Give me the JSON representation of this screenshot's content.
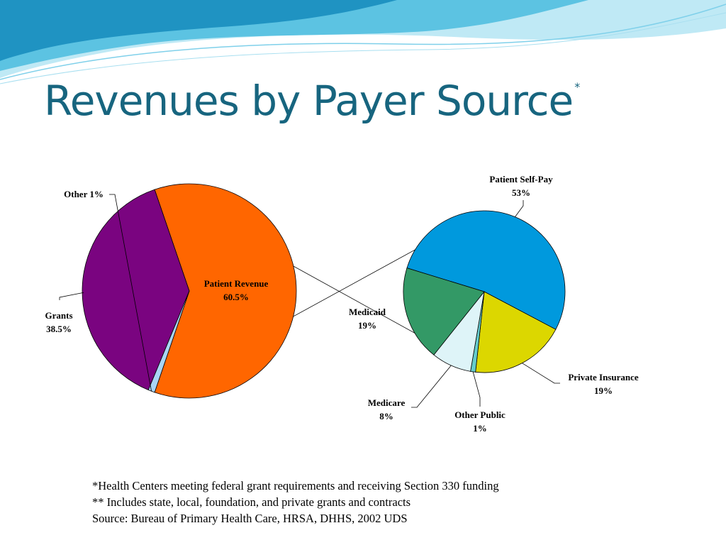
{
  "slide": {
    "title": "Revenues by Payer Source",
    "title_mark": "*",
    "footnotes": [
      "*Health Centers meeting federal grant requirements and receiving Section 330 funding",
      "** Includes state, local, foundation, and private grants and contracts",
      "Source: Bureau of Primary Health Care, HRSA, DHHS, 2002 UDS"
    ],
    "colors": {
      "title": "#17657f",
      "wave_light": "#bfe9f5",
      "wave_mid": "#5cc3e2",
      "wave_dark": "#1f93c2"
    }
  },
  "chart_data": [
    {
      "type": "pie",
      "slices": [
        {
          "label": "Patient Revenue",
          "value": 60.5,
          "value_label": "60.5%",
          "color": "#ff6600"
        },
        {
          "label": "Grants",
          "value": 38.5,
          "value_label": "38.5%",
          "color": "#7a0480"
        },
        {
          "label": "Other",
          "value": 1,
          "value_label": "1%",
          "color": "#a9d5f5"
        }
      ],
      "exploded_slice": "Patient Revenue"
    },
    {
      "type": "pie",
      "breakdown_of": "Patient Revenue",
      "slices": [
        {
          "label": "Patient Self-Pay",
          "value": 53,
          "value_label": "53%",
          "color": "#0099dd"
        },
        {
          "label": "Private Insurance",
          "value": 19,
          "value_label": "19%",
          "color": "#dcd700"
        },
        {
          "label": "Other Public",
          "value": 1,
          "value_label": "1%",
          "color": "#66cccc"
        },
        {
          "label": "Medicare",
          "value": 8,
          "value_label": "8%",
          "color": "#def4f8"
        },
        {
          "label": "Medicaid",
          "value": 19,
          "value_label": "19%",
          "color": "#339966"
        }
      ]
    }
  ]
}
